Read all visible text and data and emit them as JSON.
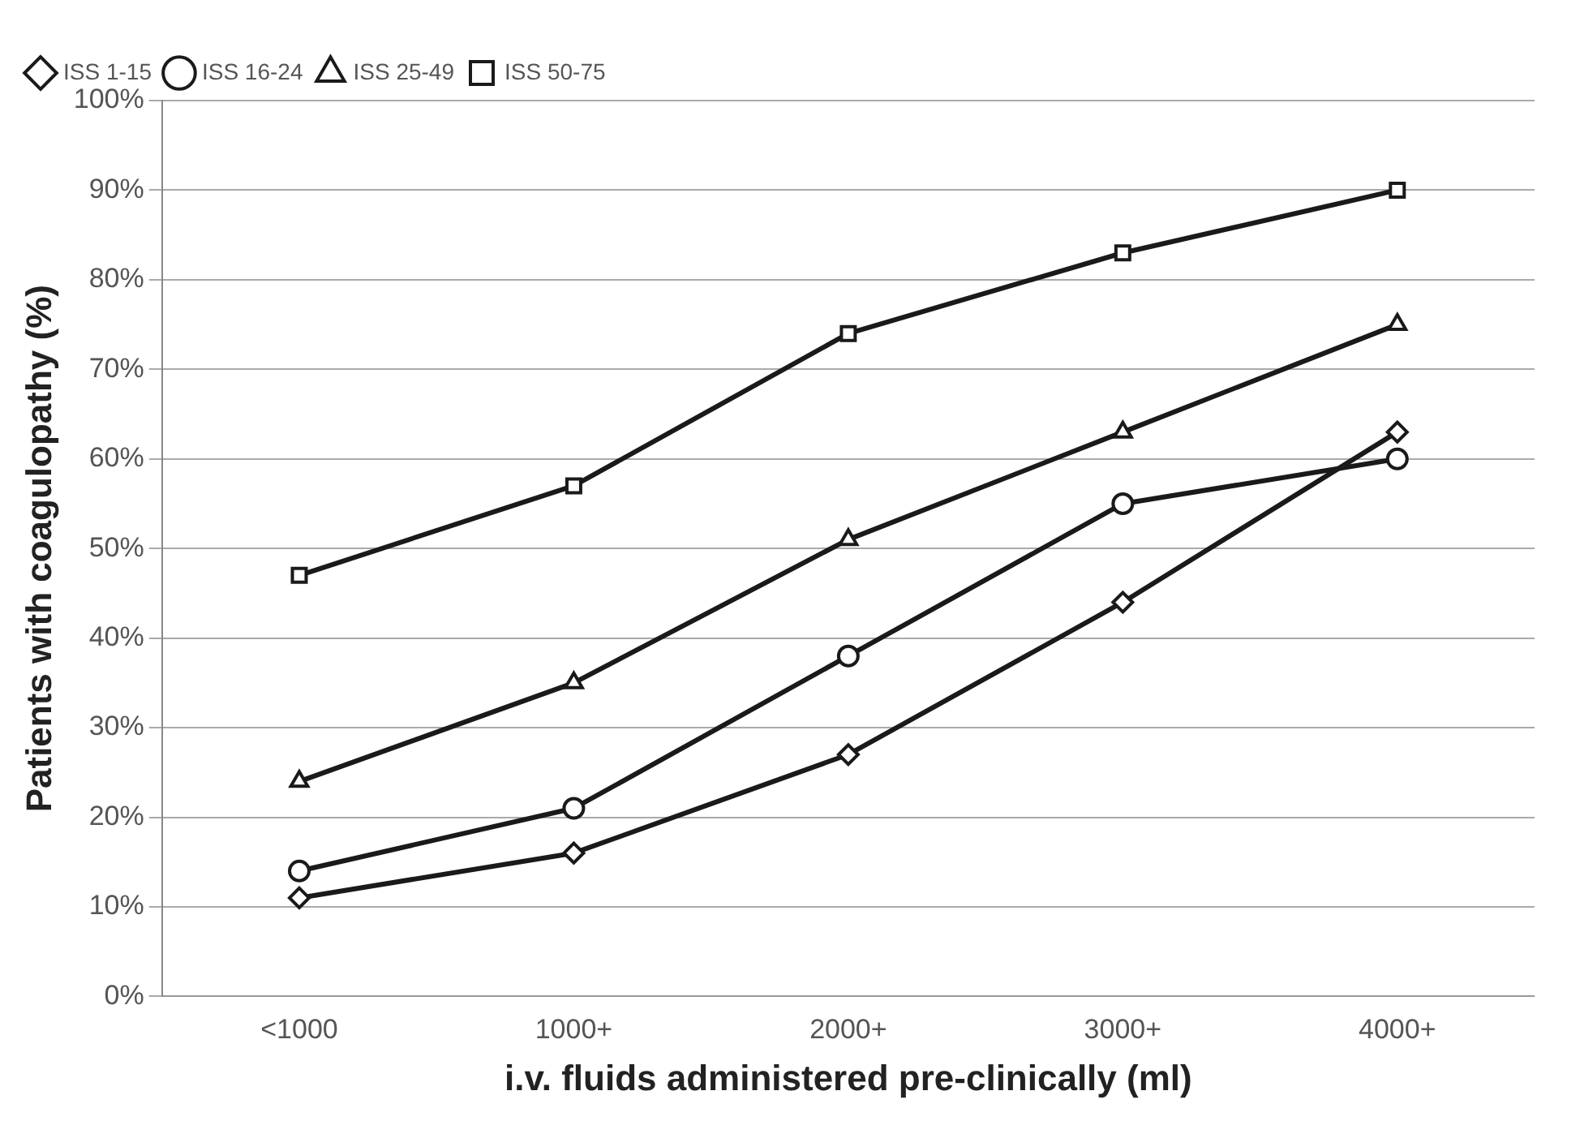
{
  "chart_data": {
    "type": "line",
    "xlabel": "i.v. fluids administered pre-clinically (ml)",
    "ylabel": "Patients with coagulopathy (%)",
    "categories": [
      "<1000",
      "1000+",
      "2000+",
      "3000+",
      "4000+"
    ],
    "series": [
      {
        "name": "ISS 1-15",
        "color": "#1a1a1a",
        "marker": "diamond",
        "values": [
          11,
          16,
          27,
          44,
          63
        ]
      },
      {
        "name": "ISS 16-24",
        "color": "#1a1a1a",
        "marker": "circle",
        "values": [
          14,
          21,
          38,
          55,
          60
        ]
      },
      {
        "name": "ISS 25-49",
        "color": "#1a1a1a",
        "marker": "triangle",
        "values": [
          24,
          35,
          51,
          63,
          75
        ]
      },
      {
        "name": "ISS 50-75",
        "color": "#1a1a1a",
        "marker": "square",
        "values": [
          47,
          57,
          74,
          83,
          90
        ]
      }
    ],
    "ylim": [
      0,
      100
    ],
    "yticks": [
      {
        "value": 0,
        "label": "0%"
      },
      {
        "value": 10,
        "label": "10%"
      },
      {
        "value": 20,
        "label": "20%"
      },
      {
        "value": 30,
        "label": "30%"
      },
      {
        "value": 40,
        "label": "40%"
      },
      {
        "value": 50,
        "label": "50%"
      },
      {
        "value": 60,
        "label": "60%"
      },
      {
        "value": 70,
        "label": "70%"
      },
      {
        "value": 80,
        "label": "80%"
      },
      {
        "value": 90,
        "label": "90%"
      },
      {
        "value": 100,
        "label": "100%"
      }
    ],
    "grid": "y",
    "legend": "top left",
    "line_style": "solid"
  }
}
